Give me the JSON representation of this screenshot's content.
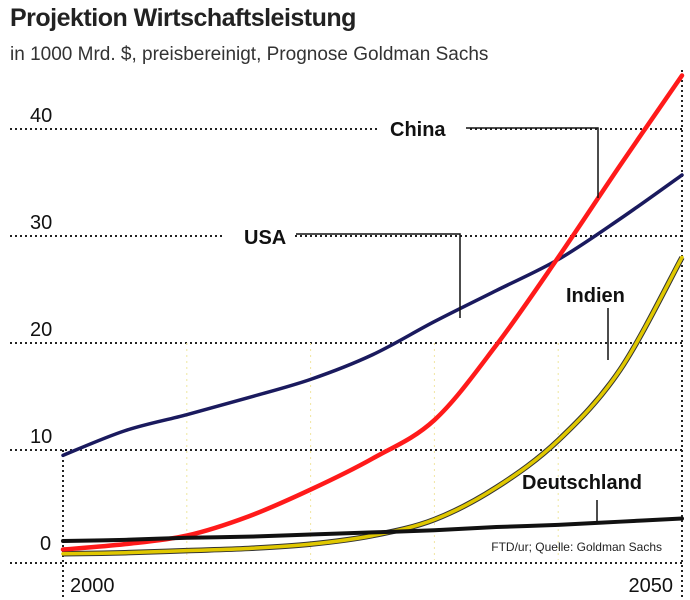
{
  "header": {
    "title": "Projektion Wirtschaftsleistung",
    "subtitle": "in 1000 Mrd. $, preisbereinigt, Prognose Goldman Sachs"
  },
  "chart_data": {
    "type": "line",
    "title": "Projektion Wirtschaftsleistung",
    "subtitle": "in 1000 Mrd. $, preisbereinigt, Prognose Goldman Sachs",
    "xlabel": "",
    "ylabel": "",
    "xlim": [
      2000,
      2050
    ],
    "ylim": [
      0,
      45
    ],
    "x_ticks": [
      "2000",
      "2050"
    ],
    "y_ticks": [
      "0",
      "10",
      "20",
      "30",
      "40"
    ],
    "grid": true,
    "source": "FTD/ur; Quelle: Goldman Sachs",
    "x": [
      2000,
      2005,
      2010,
      2015,
      2020,
      2025,
      2030,
      2035,
      2040,
      2045,
      2050
    ],
    "series": [
      {
        "name": "USA",
        "color": "#1a1a5e",
        "values": [
          9.5,
          11.8,
          13.3,
          14.9,
          16.6,
          18.9,
          22.0,
          24.9,
          27.8,
          31.6,
          35.7
        ]
      },
      {
        "name": "China",
        "color": "#ff1a1a",
        "values": [
          0.7,
          1.2,
          2.0,
          3.8,
          6.3,
          9.2,
          12.8,
          19.8,
          28.0,
          36.6,
          45.0
        ]
      },
      {
        "name": "Indien",
        "color": "#e0c800",
        "values": [
          0.3,
          0.4,
          0.6,
          0.8,
          1.2,
          2.0,
          3.5,
          6.5,
          10.9,
          17.5,
          28.0
        ]
      },
      {
        "name": "Deutschland",
        "color": "#111111",
        "values": [
          1.5,
          1.6,
          1.8,
          1.9,
          2.1,
          2.3,
          2.5,
          2.8,
          3.0,
          3.3,
          3.6
        ]
      }
    ]
  }
}
